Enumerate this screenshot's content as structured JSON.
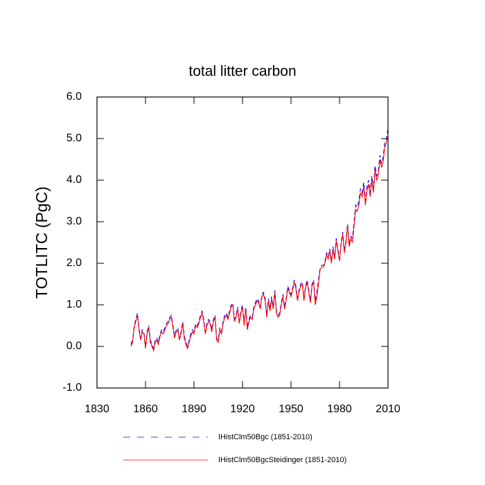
{
  "chart_data": {
    "type": "line",
    "title": "total litter carbon",
    "ylabel": "TOTLITC  (PgC)",
    "x": [
      1851,
      1852,
      1853,
      1854,
      1855,
      1856,
      1857,
      1858,
      1859,
      1860,
      1861,
      1862,
      1863,
      1864,
      1865,
      1866,
      1867,
      1868,
      1869,
      1870,
      1871,
      1872,
      1873,
      1874,
      1875,
      1876,
      1877,
      1878,
      1879,
      1880,
      1881,
      1882,
      1883,
      1884,
      1885,
      1886,
      1887,
      1888,
      1889,
      1890,
      1891,
      1892,
      1893,
      1894,
      1895,
      1896,
      1897,
      1898,
      1899,
      1900,
      1901,
      1902,
      1903,
      1904,
      1905,
      1906,
      1907,
      1908,
      1909,
      1910,
      1911,
      1912,
      1913,
      1914,
      1915,
      1916,
      1917,
      1918,
      1919,
      1920,
      1921,
      1922,
      1923,
      1924,
      1925,
      1926,
      1927,
      1928,
      1929,
      1930,
      1931,
      1932,
      1933,
      1934,
      1935,
      1936,
      1937,
      1938,
      1939,
      1940,
      1941,
      1942,
      1943,
      1944,
      1945,
      1946,
      1947,
      1948,
      1949,
      1950,
      1951,
      1952,
      1953,
      1954,
      1955,
      1956,
      1957,
      1958,
      1959,
      1960,
      1961,
      1962,
      1963,
      1964,
      1965,
      1966,
      1967,
      1968,
      1969,
      1970,
      1971,
      1972,
      1973,
      1974,
      1975,
      1976,
      1977,
      1978,
      1979,
      1980,
      1981,
      1982,
      1983,
      1984,
      1985,
      1986,
      1987,
      1988,
      1989,
      1990,
      1991,
      1992,
      1993,
      1994,
      1995,
      1996,
      1997,
      1998,
      1999,
      2000,
      2001,
      2002,
      2003,
      2004,
      2005,
      2006,
      2007,
      2008,
      2009,
      2010
    ],
    "series": [
      {
        "name": "IHistClm50Bgc (1851-2010)",
        "color": "#0000ff",
        "dash": "dashed",
        "values": [
          0.05,
          0.15,
          0.5,
          0.65,
          0.8,
          0.45,
          0.2,
          0.4,
          0.35,
          0.0,
          0.35,
          0.5,
          0.15,
          0.05,
          -0.05,
          0.15,
          0.2,
          0.1,
          0.3,
          0.4,
          0.35,
          0.45,
          0.55,
          0.6,
          0.7,
          0.75,
          0.5,
          0.25,
          0.4,
          0.45,
          0.2,
          0.35,
          0.6,
          0.25,
          0.1,
          0.0,
          0.15,
          0.3,
          0.4,
          0.35,
          0.55,
          0.5,
          0.6,
          0.75,
          0.85,
          0.65,
          0.35,
          0.55,
          0.65,
          0.6,
          0.4,
          0.65,
          0.75,
          0.2,
          0.15,
          0.45,
          0.35,
          0.6,
          0.75,
          0.8,
          0.7,
          0.85,
          1.0,
          1.05,
          0.65,
          0.75,
          0.95,
          0.6,
          0.85,
          1.0,
          0.55,
          0.95,
          0.45,
          0.65,
          0.75,
          0.7,
          0.95,
          1.05,
          1.15,
          1.1,
          0.95,
          1.25,
          1.3,
          1.15,
          0.75,
          1.15,
          0.9,
          1.2,
          0.95,
          1.35,
          0.85,
          0.75,
          0.8,
          1.05,
          1.25,
          0.95,
          1.15,
          1.45,
          1.35,
          1.25,
          1.4,
          1.6,
          1.45,
          1.15,
          1.35,
          1.5,
          1.55,
          1.15,
          1.45,
          1.6,
          1.35,
          1.1,
          1.5,
          1.6,
          1.1,
          1.3,
          1.6,
          1.9,
          1.95,
          1.95,
          2.05,
          2.25,
          2.15,
          2.35,
          2.05,
          2.4,
          2.15,
          2.6,
          2.35,
          2.1,
          2.5,
          2.75,
          2.3,
          2.55,
          2.95,
          2.45,
          2.65,
          2.6,
          3.0,
          3.4,
          3.35,
          3.5,
          3.8,
          3.7,
          3.95,
          3.5,
          3.85,
          4.0,
          3.7,
          4.1,
          3.8,
          4.35,
          4.1,
          4.2,
          4.6,
          4.4,
          4.55,
          4.9,
          5.0,
          5.25
        ]
      },
      {
        "name": "IHistClm50BgcSteidinger (1851-2010)",
        "color": "#ff0000",
        "dash": "solid",
        "values": [
          0.0,
          0.1,
          0.45,
          0.6,
          0.75,
          0.4,
          0.15,
          0.35,
          0.3,
          -0.05,
          0.3,
          0.45,
          0.1,
          0.0,
          -0.1,
          0.1,
          0.15,
          0.05,
          0.25,
          0.35,
          0.3,
          0.4,
          0.5,
          0.55,
          0.65,
          0.7,
          0.45,
          0.2,
          0.35,
          0.4,
          0.15,
          0.3,
          0.55,
          0.2,
          0.05,
          -0.05,
          0.1,
          0.25,
          0.35,
          0.3,
          0.5,
          0.45,
          0.55,
          0.7,
          0.8,
          0.6,
          0.3,
          0.5,
          0.6,
          0.55,
          0.35,
          0.6,
          0.7,
          0.15,
          0.1,
          0.4,
          0.3,
          0.55,
          0.7,
          0.75,
          0.65,
          0.8,
          0.95,
          1.0,
          0.6,
          0.7,
          0.9,
          0.55,
          0.8,
          0.95,
          0.5,
          0.9,
          0.4,
          0.6,
          0.7,
          0.65,
          0.9,
          1.0,
          1.1,
          1.05,
          0.9,
          1.2,
          1.25,
          1.1,
          0.7,
          1.1,
          0.85,
          1.15,
          0.9,
          1.3,
          0.8,
          0.7,
          0.75,
          1.0,
          1.2,
          0.9,
          1.1,
          1.4,
          1.3,
          1.2,
          1.35,
          1.55,
          1.4,
          1.1,
          1.3,
          1.45,
          1.5,
          1.1,
          1.4,
          1.55,
          1.3,
          1.05,
          1.45,
          1.55,
          1.0,
          1.2,
          1.5,
          1.85,
          1.9,
          1.9,
          2.0,
          2.2,
          2.1,
          2.3,
          2.0,
          2.35,
          2.1,
          2.55,
          2.3,
          2.05,
          2.45,
          2.7,
          2.25,
          2.5,
          2.9,
          2.4,
          2.6,
          2.5,
          2.9,
          3.3,
          3.25,
          3.4,
          3.7,
          3.6,
          3.85,
          3.4,
          3.75,
          3.9,
          3.6,
          4.0,
          3.7,
          4.25,
          4.0,
          4.1,
          4.5,
          4.3,
          4.45,
          4.8,
          4.9,
          5.1
        ]
      }
    ],
    "xlim": [
      1830,
      2010
    ],
    "xticks": [
      1830,
      1860,
      1890,
      1920,
      1950,
      1980,
      2010
    ],
    "ylim": [
      -1,
      6
    ],
    "yticks": [
      {
        "value": -1,
        "label": "-1.0"
      },
      {
        "value": 0,
        "label": "0.0"
      },
      {
        "value": 1,
        "label": "1.0"
      },
      {
        "value": 2,
        "label": "2.0"
      },
      {
        "value": 3,
        "label": "3.0"
      },
      {
        "value": 4,
        "label": "4.0"
      },
      {
        "value": 5,
        "label": "5.0"
      },
      {
        "value": 6,
        "label": "6.0"
      }
    ],
    "legend": "bottom"
  }
}
